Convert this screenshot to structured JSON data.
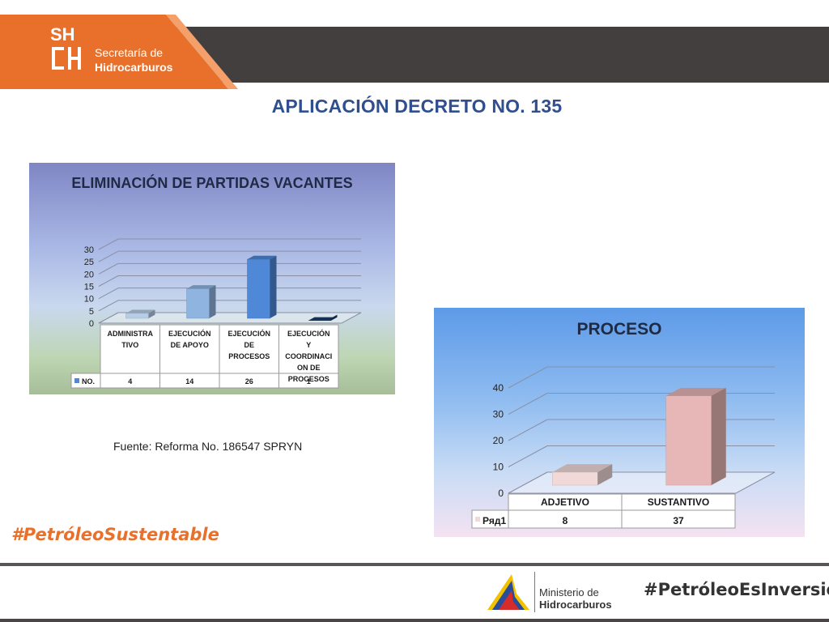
{
  "header": {
    "logo_letters": "SH",
    "org_line1": "Secretaría de",
    "org_line2": "Hidrocarburos"
  },
  "slide_title": "APLICACIÓN DECRETO NO. 135",
  "source_note": "Fuente: Reforma No. 186547 SPRYN",
  "hashtag_left": "#PetróleoSustentable",
  "footer": {
    "ministry_line1": "Ministerio de",
    "ministry_line2": "Hidrocarburos",
    "hashtag_right": "#PetróleoEsInversión"
  },
  "colors": {
    "brand_orange": "#e8702a",
    "header_dark": "#423f3e",
    "title_blue": "#2f4f8f"
  },
  "chart_data": [
    {
      "type": "bar",
      "title": "ELIMINACIÓN DE PARTIDAS VACANTES",
      "categories": [
        "ADMINISTRA TIVO",
        "EJECUCIÓN DE APOYO",
        "EJECUCIÓN DE PROCESOS",
        "EJECUCIÓN Y COORDINACI ON DE PROCESOS"
      ],
      "series": [
        {
          "name": "NO.",
          "values": [
            4,
            14,
            26,
            1
          ]
        }
      ],
      "ylim": [
        0,
        30
      ],
      "yticks": [
        0,
        5,
        10,
        15,
        20,
        25,
        30
      ],
      "bar_colors": [
        "#b7cde6",
        "#8fb4e0",
        "#4f88d6",
        "#1a3f6b"
      ],
      "grid": true,
      "data_table": true
    },
    {
      "type": "bar",
      "title": "PROCESO",
      "categories": [
        "ADJETIVO",
        "SUSTANTIVO"
      ],
      "series": [
        {
          "name": "Ряд1",
          "values": [
            8,
            37
          ]
        }
      ],
      "ylim": [
        0,
        40
      ],
      "yticks": [
        0,
        10,
        20,
        30,
        40
      ],
      "bar_colors": [
        "#f1d9d9",
        "#e6b7b6"
      ],
      "grid": true,
      "data_table": true
    }
  ]
}
